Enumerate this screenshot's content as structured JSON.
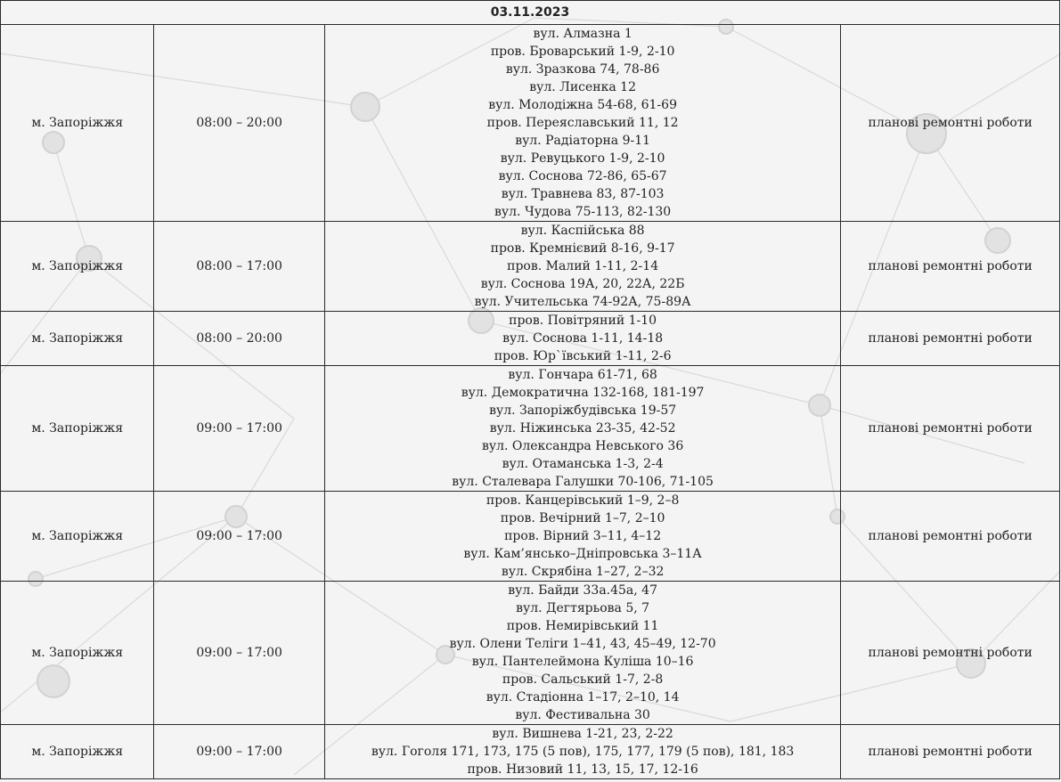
{
  "date": "03.11.2023",
  "rows": [
    {
      "city": "м. Запоріжжя",
      "time": "08:00 – 20:00",
      "addresses": [
        "вул. Алмазна 1",
        "пров. Броварський 1-9, 2-10",
        "вул. Зразкова 74, 78-86",
        "вул. Лисенка 12",
        "вул. Молодіжна 54-68, 61-69",
        "пров. Переяславський 11, 12",
        "вул. Радіаторна 9-11",
        "вул. Ревуцького 1-9, 2-10",
        "вул. Соснова 72-86, 65-67",
        "вул. Травнева 83, 87-103",
        "вул. Чудова 75-113, 82-130"
      ],
      "reason": "планові ремонтні роботи"
    },
    {
      "city": "м. Запоріжжя",
      "time": "08:00 – 17:00",
      "addresses": [
        "вул. Каспійська 88",
        "пров. Кремнієвий 8-16, 9-17",
        "пров. Малий 1-11, 2-14",
        "вул. Соснова 19А, 20, 22А, 22Б",
        "вул. Учительська 74-92А, 75-89А"
      ],
      "reason": "планові ремонтні роботи"
    },
    {
      "city": "м. Запоріжжя",
      "time": "08:00 – 20:00",
      "addresses": [
        "пров. Повітряний 1-10",
        "вул. Соснова 1-11, 14-18",
        "пров. Юр`ївський 1-11, 2-6"
      ],
      "reason": "планові ремонтні роботи"
    },
    {
      "city": "м. Запоріжжя",
      "time": "09:00 – 17:00",
      "addresses": [
        "вул. Гончара 61-71, 68",
        "вул. Демократична 132-168, 181-197",
        "вул. Запоріжбудівська 19-57",
        "вул. Ніжинська 23-35, 42-52",
        "вул. Олександра Невського 36",
        "вул. Отаманська 1-3, 2-4",
        "вул. Сталевара Галушки 70-106, 71-105"
      ],
      "reason": "планові ремонтні роботи"
    },
    {
      "city": "м. Запоріжжя",
      "time": "09:00 – 17:00",
      "addresses": [
        "пров. Канцерівський 1–9, 2–8",
        "пров. Вечірний 1–7, 2–10",
        "пров. Вірний 3–11, 4–12",
        "вул. Кам’янсько–Дніпровська 3–11А",
        "вул. Скрябіна 1–27, 2–32"
      ],
      "reason": "планові ремонтні роботи"
    },
    {
      "city": "м. Запоріжжя",
      "time": "09:00 – 17:00",
      "addresses": [
        "вул. Байди 33а.45а, 47",
        "вул. Дегтярьова 5, 7",
        "пров. Немирівський 11",
        "вул. Олени Теліги 1–41, 43, 45–49, 12-70",
        "вул. Пантелеймона Куліша 10–16",
        "пров. Сальський 1-7, 2-8",
        "вул. Стадіонна 1–17, 2–10, 14",
        "вул. Фестивальна 30"
      ],
      "reason": "планові ремонтні роботи"
    },
    {
      "city": "м. Запоріжжя",
      "time": "09:00 – 17:00",
      "addresses": [
        "вул. Вишнева 1-21, 23, 2-22",
        "вул. Гоголя 171, 173, 175 (5 пов), 175, 177, 179  (5 пов), 181, 183",
        "пров. Низовий 11, 13, 15, 17, 12-16"
      ],
      "reason": "планові ремонтні роботи"
    }
  ]
}
